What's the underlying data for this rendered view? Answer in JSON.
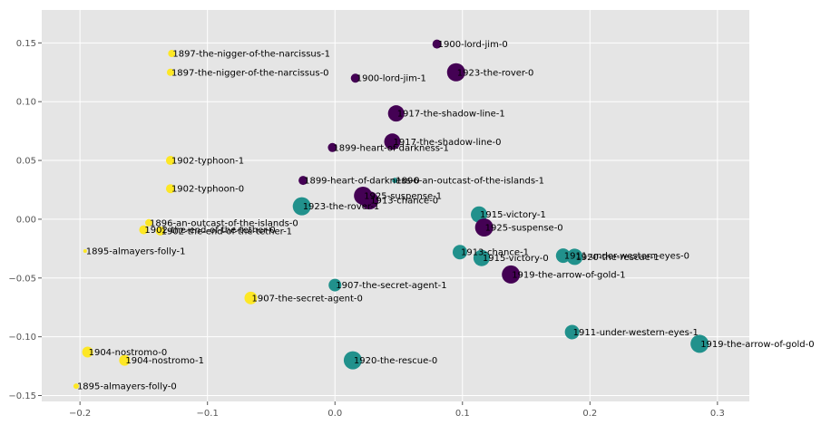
{
  "chart_data": {
    "type": "scatter",
    "title": "",
    "xlabel": "",
    "ylabel": "",
    "xlim": [
      -0.23,
      0.325
    ],
    "ylim": [
      -0.155,
      0.178
    ],
    "xticks": [
      -0.2,
      -0.1,
      0.0,
      0.1,
      0.2,
      0.3
    ],
    "xtick_labels": [
      "−0.2",
      "−0.1",
      "0.0",
      "0.1",
      "0.2",
      "0.3"
    ],
    "yticks": [
      -0.15,
      -0.1,
      -0.05,
      0.0,
      0.05,
      0.1,
      0.15
    ],
    "ytick_labels": [
      "−0.15",
      "−0.10",
      "−0.05",
      "0.00",
      "0.05",
      "0.10",
      "0.15"
    ],
    "grid": true,
    "background": "#e5e5e5",
    "grid_color": "#ffffff",
    "colors": {
      "purple": "#440154",
      "teal": "#21918c",
      "yellow": "#fde725"
    },
    "points": [
      {
        "label": "1897-the-nigger-of-the-narcissus-1",
        "x": -0.128,
        "y": 0.141,
        "size": 4,
        "color": "yellow"
      },
      {
        "label": "1897-the-nigger-of-the-narcissus-0",
        "x": -0.129,
        "y": 0.125,
        "size": 4,
        "color": "yellow"
      },
      {
        "label": "1900-lord-jim-0",
        "x": 0.08,
        "y": 0.149,
        "size": 5,
        "color": "purple"
      },
      {
        "label": "1900-lord-jim-1",
        "x": 0.016,
        "y": 0.12,
        "size": 5,
        "color": "purple"
      },
      {
        "label": "1923-the-rover-0",
        "x": 0.095,
        "y": 0.125,
        "size": 10,
        "color": "purple"
      },
      {
        "label": "1917-the-shadow-line-1",
        "x": 0.048,
        "y": 0.09,
        "size": 9,
        "color": "purple"
      },
      {
        "label": "1917-the-shadow-line-0",
        "x": 0.045,
        "y": 0.066,
        "size": 9,
        "color": "purple"
      },
      {
        "label": "1899-heart-of-darkness-1",
        "x": -0.002,
        "y": 0.061,
        "size": 5,
        "color": "purple"
      },
      {
        "label": "1902-typhoon-1",
        "x": -0.129,
        "y": 0.05,
        "size": 5,
        "color": "yellow"
      },
      {
        "label": "1899-heart-of-darkness-0",
        "x": -0.025,
        "y": 0.033,
        "size": 5,
        "color": "purple"
      },
      {
        "label": "1896-an-outcast-of-the-islands-1",
        "x": 0.047,
        "y": 0.033,
        "size": 3,
        "color": "teal"
      },
      {
        "label": "1902-typhoon-0",
        "x": -0.129,
        "y": 0.026,
        "size": 5,
        "color": "yellow"
      },
      {
        "label": "1925-suspense-1",
        "x": 0.022,
        "y": 0.02,
        "size": 10,
        "color": "purple"
      },
      {
        "label": "1913-chance-0",
        "x": 0.027,
        "y": 0.016,
        "size": 10,
        "color": "purple"
      },
      {
        "label": "1923-the-rover-1",
        "x": -0.026,
        "y": 0.011,
        "size": 10,
        "color": "teal"
      },
      {
        "label": "1915-victory-1",
        "x": 0.113,
        "y": 0.004,
        "size": 9,
        "color": "teal"
      },
      {
        "label": "1925-suspense-0",
        "x": 0.117,
        "y": -0.007,
        "size": 10,
        "color": "purple"
      },
      {
        "label": "1896-an-outcast-of-the-islands-0",
        "x": -0.146,
        "y": -0.003,
        "size": 4,
        "color": "yellow"
      },
      {
        "label": "1902-the-end-of-the-tether-0",
        "x": -0.15,
        "y": -0.009,
        "size": 5,
        "color": "yellow"
      },
      {
        "label": "1902-the-end-of-the-tether-1",
        "x": -0.137,
        "y": -0.01,
        "size": 5,
        "color": "yellow"
      },
      {
        "label": "1895-almayers-folly-1",
        "x": -0.196,
        "y": -0.027,
        "size": 2,
        "color": "yellow"
      },
      {
        "label": "1913-chance-1",
        "x": 0.098,
        "y": -0.028,
        "size": 8,
        "color": "teal"
      },
      {
        "label": "1915-victory-0",
        "x": 0.115,
        "y": -0.033,
        "size": 9,
        "color": "teal"
      },
      {
        "label": "1911-under-western-eyes-0",
        "x": 0.179,
        "y": -0.031,
        "size": 8,
        "color": "teal"
      },
      {
        "label": "1920-the-rescue-1",
        "x": 0.188,
        "y": -0.032,
        "size": 9,
        "color": "teal"
      },
      {
        "label": "1919-the-arrow-of-gold-1",
        "x": 0.138,
        "y": -0.047,
        "size": 10,
        "color": "purple"
      },
      {
        "label": "1907-the-secret-agent-1",
        "x": 0.0,
        "y": -0.056,
        "size": 7,
        "color": "teal"
      },
      {
        "label": "1907-the-secret-agent-0",
        "x": -0.066,
        "y": -0.067,
        "size": 7,
        "color": "yellow"
      },
      {
        "label": "1911-under-western-eyes-1",
        "x": 0.186,
        "y": -0.096,
        "size": 8,
        "color": "teal"
      },
      {
        "label": "1919-the-arrow-of-gold-0",
        "x": 0.286,
        "y": -0.106,
        "size": 10,
        "color": "teal"
      },
      {
        "label": "1904-nostromo-0",
        "x": -0.194,
        "y": -0.113,
        "size": 6,
        "color": "yellow"
      },
      {
        "label": "1904-nostromo-1",
        "x": -0.165,
        "y": -0.12,
        "size": 6,
        "color": "yellow"
      },
      {
        "label": "1920-the-rescue-0",
        "x": 0.014,
        "y": -0.12,
        "size": 10,
        "color": "teal"
      },
      {
        "label": "1895-almayers-folly-0",
        "x": -0.203,
        "y": -0.142,
        "size": 3,
        "color": "yellow"
      }
    ]
  }
}
